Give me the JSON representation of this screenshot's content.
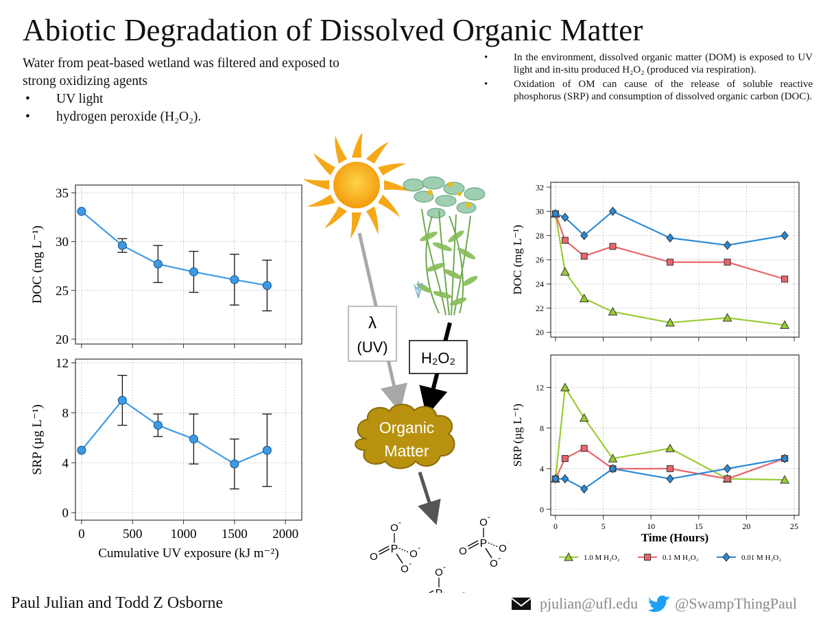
{
  "title": "Abiotic Degradation of Dissolved Organic Matter",
  "intro": {
    "lead": "Water from peat-based wetland was filtered and exposed to strong oxidizing agents",
    "bullets": [
      "UV light",
      "hydrogen peroxide (H₂O₂)."
    ]
  },
  "facts": [
    "In the environment, dissolved organic matter (DOM) is exposed to UV light and in-situ produced H₂O₂ (produced via respiration).",
    "Oxidation of OM can cause of the release of soluble reactive phosphorus (SRP) and consumption of dissolved organic carbon (DOC)."
  ],
  "diagram": {
    "uv_label_1": "λ",
    "uv_label_2": "(UV)",
    "h2o2_label": "H₂O₂",
    "om_label_1": "Organic",
    "om_label_2": "Matter",
    "phosphate_atom_p": "P",
    "phosphate_atom_o": "O",
    "phosphate_charge": "-",
    "icons": [
      "sun-icon",
      "wetland-plant-icon",
      "cloud-icon",
      "phosphate-icon"
    ]
  },
  "footer": {
    "authors": "Paul Julian and Todd Z Osborne",
    "email": "pjulian@ufl.edu",
    "handle": "@SwampThingPaul",
    "icons": [
      "envelope-icon",
      "twitter-bird-icon"
    ]
  },
  "colors": {
    "uv_series": "#3d9ae6",
    "green": "#99cc33",
    "red": "#e8656b",
    "blue": "#2a8ad6",
    "organic_matter": "#b8920f"
  },
  "chart_data": [
    {
      "id": "uv-doc",
      "type": "line",
      "ylabel": "DOC (mg L⁻¹)",
      "xlabel": "",
      "xlim": [
        -60,
        2160
      ],
      "ylim": [
        19.5,
        35.8
      ],
      "xticks": [
        0,
        500,
        1000,
        1500,
        2000
      ],
      "yticks": [
        20,
        25,
        30,
        35
      ],
      "show_xticklabels": false,
      "grid": true,
      "x": [
        0,
        400,
        750,
        1100,
        1500,
        1820
      ],
      "y": [
        33.1,
        29.6,
        27.7,
        26.9,
        26.1,
        25.5
      ],
      "err": [
        0,
        0.7,
        1.9,
        2.1,
        2.6,
        2.6
      ]
    },
    {
      "id": "uv-srp",
      "type": "line",
      "ylabel": "SRP (µg L⁻¹)",
      "xlabel": "Cumulative UV exposure (kJ m⁻²)",
      "xlim": [
        -60,
        2160
      ],
      "ylim": [
        -0.6,
        12.3
      ],
      "xticks": [
        0,
        500,
        1000,
        1500,
        2000
      ],
      "yticks": [
        0,
        4,
        8,
        12
      ],
      "show_xticklabels": true,
      "grid": true,
      "x": [
        0,
        400,
        750,
        1100,
        1500,
        1820
      ],
      "y": [
        5.0,
        9.0,
        7.0,
        5.9,
        3.9,
        5.0
      ],
      "err": [
        0,
        2.0,
        0.9,
        2.0,
        2.0,
        2.9
      ]
    },
    {
      "id": "h2o2-doc",
      "type": "line",
      "ylabel": "DOC (mg L⁻¹)",
      "xlabel": "",
      "xlim": [
        -0.5,
        25.5
      ],
      "ylim": [
        19.6,
        32.4
      ],
      "xticks": [
        0,
        5,
        10,
        15,
        20,
        25
      ],
      "yticks": [
        20,
        22,
        24,
        26,
        28,
        30,
        32
      ],
      "show_xticklabels": false,
      "grid": true,
      "series": [
        {
          "name": "1.0 M H₂O₂",
          "marker": "triangle",
          "x": [
            0,
            1,
            3,
            6,
            12,
            18,
            24
          ],
          "y": [
            29.8,
            25.0,
            22.8,
            21.7,
            20.8,
            21.2,
            20.6
          ]
        },
        {
          "name": "0.1 M H₂O₂",
          "marker": "square",
          "x": [
            0,
            1,
            3,
            6,
            12,
            18,
            24
          ],
          "y": [
            29.8,
            27.6,
            26.3,
            27.1,
            25.8,
            25.8,
            24.4
          ]
        },
        {
          "name": "0.01 M H₂O₂",
          "marker": "diamond",
          "x": [
            0,
            1,
            3,
            6,
            12,
            18,
            24
          ],
          "y": [
            29.8,
            29.5,
            28.0,
            30.0,
            27.8,
            27.2,
            28.0
          ]
        }
      ]
    },
    {
      "id": "h2o2-srp",
      "type": "line",
      "ylabel": "SRP (µg L⁻¹)",
      "xlabel": "Time (Hours)",
      "xlim": [
        -0.5,
        25.5
      ],
      "ylim": [
        -0.6,
        15.2
      ],
      "xticks": [
        0,
        5,
        10,
        15,
        20,
        25
      ],
      "yticks": [
        0,
        4,
        8,
        12
      ],
      "show_xticklabels": true,
      "grid": true,
      "legend": "bottom",
      "series": [
        {
          "name": "1.0 M H₂O₂",
          "marker": "triangle",
          "x": [
            0,
            1,
            3,
            6,
            12,
            18,
            24
          ],
          "y": [
            3.0,
            12.0,
            9.0,
            5.0,
            6.0,
            3.0,
            2.9
          ]
        },
        {
          "name": "0.1 M H₂O₂",
          "marker": "square",
          "x": [
            0,
            1,
            3,
            6,
            12,
            18,
            24
          ],
          "y": [
            3.0,
            5.0,
            6.0,
            4.0,
            4.0,
            3.0,
            5.0
          ]
        },
        {
          "name": "0.01 M H₂O₂",
          "marker": "diamond",
          "x": [
            0,
            1,
            3,
            6,
            12,
            18,
            24
          ],
          "y": [
            3.0,
            3.0,
            2.0,
            4.0,
            3.0,
            4.0,
            5.0
          ]
        }
      ]
    }
  ]
}
